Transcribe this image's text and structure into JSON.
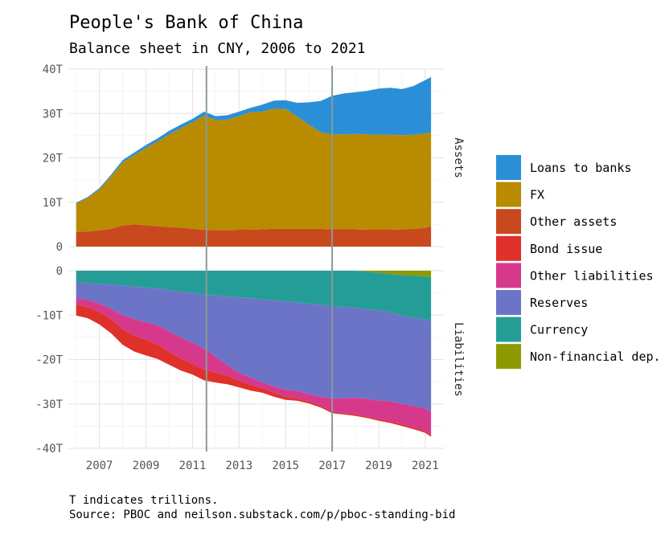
{
  "title": "People's Bank of China",
  "subtitle": "Balance sheet in CNY, 2006 to 2021",
  "caption_line1": "T indicates trillions.",
  "caption_line2": "Source: PBOC and neilson.substack.com/p/pboc-standing-bid",
  "chart_data": {
    "type": "area",
    "stacked": true,
    "units": "CNY trillions",
    "x_ticks": [
      "2007",
      "2009",
      "2011",
      "2013",
      "2015",
      "2017",
      "2019",
      "2021"
    ],
    "vertical_lines": [
      2011.6,
      2017
    ],
    "panels": [
      {
        "facet_label": "Assets",
        "ylim": [
          0,
          40
        ],
        "y_ticks": [
          {
            "value": 40,
            "label": "40T"
          },
          {
            "value": 30,
            "label": "30T"
          },
          {
            "value": 20,
            "label": "20T"
          },
          {
            "value": 10,
            "label": "10T"
          },
          {
            "value": 0,
            "label": "0"
          }
        ],
        "x": [
          2006.0,
          2006.5,
          2007.0,
          2007.5,
          2008.0,
          2008.5,
          2009.0,
          2009.5,
          2010.0,
          2010.5,
          2011.0,
          2011.5,
          2012.0,
          2012.5,
          2013.0,
          2013.5,
          2014.0,
          2014.5,
          2015.0,
          2015.5,
          2016.0,
          2016.5,
          2017.0,
          2017.5,
          2018.0,
          2018.5,
          2019.0,
          2019.5,
          2020.0,
          2020.5,
          2021.0,
          2021.25
        ],
        "series": [
          {
            "name": "Other assets",
            "color": "#c9491e",
            "values": [
              3.3,
              3.4,
              3.7,
              4.0,
              4.8,
              5.0,
              4.8,
              4.6,
              4.4,
              4.3,
              4.0,
              3.8,
              3.7,
              3.7,
              3.8,
              3.8,
              3.9,
              4.0,
              4.0,
              4.0,
              4.0,
              4.0,
              3.9,
              3.9,
              3.9,
              3.8,
              3.8,
              3.8,
              3.9,
              4.0,
              4.2,
              4.6
            ]
          },
          {
            "name": "FX",
            "color": "#b88b00",
            "values": [
              6.4,
              7.6,
              9.2,
              11.8,
              14.2,
              15.6,
              17.4,
              19.1,
              20.9,
              22.4,
              24.0,
              25.7,
              24.8,
              24.9,
              25.6,
              26.5,
              26.5,
              27.1,
              27.0,
              25.3,
              23.5,
              21.8,
              21.4,
              21.4,
              21.5,
              21.5,
              21.4,
              21.4,
              21.2,
              21.2,
              21.3,
              21.2
            ]
          },
          {
            "name": "Loans to banks",
            "color": "#2b8fd8",
            "values": [
              0.2,
              0.2,
              0.3,
              0.4,
              0.5,
              0.6,
              0.7,
              0.7,
              0.8,
              0.8,
              0.8,
              0.9,
              0.9,
              1.0,
              1.0,
              1.0,
              1.6,
              1.8,
              2.0,
              3.1,
              5.0,
              7.0,
              8.7,
              9.2,
              9.4,
              9.8,
              10.4,
              10.6,
              10.4,
              11.0,
              12.0,
              12.4
            ]
          }
        ]
      },
      {
        "facet_label": "Liabilities",
        "ylim": [
          -40,
          0
        ],
        "y_ticks": [
          {
            "value": 0,
            "label": "0"
          },
          {
            "value": -10,
            "label": "-10T"
          },
          {
            "value": -20,
            "label": "-20T"
          },
          {
            "value": -30,
            "label": "-30T"
          },
          {
            "value": -40,
            "label": "-40T"
          }
        ],
        "x": [
          2006.0,
          2006.5,
          2007.0,
          2007.5,
          2008.0,
          2008.5,
          2009.0,
          2009.5,
          2010.0,
          2010.5,
          2011.0,
          2011.5,
          2012.0,
          2012.5,
          2013.0,
          2013.5,
          2014.0,
          2014.5,
          2015.0,
          2015.5,
          2016.0,
          2016.5,
          2017.0,
          2017.5,
          2018.0,
          2018.5,
          2019.0,
          2019.5,
          2020.0,
          2020.5,
          2021.0,
          2021.25
        ],
        "series": [
          {
            "name": "Non-financial dep.",
            "color": "#8c9a00",
            "values": [
              0,
              0,
              0,
              0,
              0,
              0,
              0,
              0,
              0,
              0,
              0,
              0,
              0,
              0,
              0,
              0,
              0,
              0,
              0,
              0,
              0,
              0,
              0,
              0,
              0,
              -0.2,
              -0.5,
              -0.8,
              -1.0,
              -1.1,
              -1.3,
              -1.5
            ]
          },
          {
            "name": "Currency",
            "color": "#259d97",
            "values": [
              -2.6,
              -2.8,
              -3.0,
              -3.1,
              -3.4,
              -3.6,
              -3.8,
              -4.0,
              -4.4,
              -4.7,
              -5.0,
              -5.4,
              -5.6,
              -5.8,
              -6.0,
              -6.2,
              -6.5,
              -6.7,
              -6.9,
              -7.2,
              -7.4,
              -7.7,
              -8.0,
              -8.2,
              -8.4,
              -8.5,
              -8.4,
              -8.6,
              -9.2,
              -9.5,
              -9.7,
              -10.0
            ]
          },
          {
            "name": "Reserves",
            "color": "#6c74c8",
            "values": [
              -3.6,
              -3.8,
              -4.4,
              -5.5,
              -6.6,
              -7.3,
              -7.8,
              -8.3,
              -9.3,
              -10.4,
              -11.2,
              -12.2,
              -13.8,
              -15.5,
              -17.0,
              -17.9,
              -18.7,
              -19.4,
              -19.9,
              -19.9,
              -20.4,
              -20.7,
              -20.8,
              -20.6,
              -20.2,
              -20.2,
              -20.4,
              -20.0,
              -19.8,
              -19.9,
              -20.1,
              -20.3
            ]
          },
          {
            "name": "Other liabilities",
            "color": "#d6398c",
            "values": [
              -1.5,
              -1.6,
              -1.9,
              -2.3,
              -3.2,
              -3.7,
              -4.0,
              -4.3,
              -4.6,
              -4.7,
              -4.8,
              -4.7,
              -3.6,
              -2.4,
              -1.8,
              -1.6,
              -1.3,
              -1.4,
              -1.6,
              -1.7,
              -1.7,
              -2.0,
              -3.0,
              -3.3,
              -3.8,
              -4.0,
              -4.2,
              -4.5,
              -4.6,
              -4.8,
              -5.0,
              -5.2
            ]
          },
          {
            "name": "Bond issue",
            "color": "#e0302a",
            "values": [
              -2.4,
              -2.5,
              -2.8,
              -3.2,
              -3.5,
              -3.6,
              -3.5,
              -3.3,
              -2.9,
              -2.7,
              -2.4,
              -2.4,
              -2.2,
              -1.9,
              -1.5,
              -1.3,
              -1.0,
              -0.9,
              -0.7,
              -0.5,
              -0.4,
              -0.4,
              -0.3,
              -0.3,
              -0.3,
              -0.3,
              -0.3,
              -0.4,
              -0.4,
              -0.4,
              -0.4,
              -0.4
            ]
          }
        ]
      }
    ],
    "legend": {
      "placement": "right",
      "entries": [
        {
          "name": "Loans to banks",
          "color": "#2b8fd8"
        },
        {
          "name": "FX",
          "color": "#b88b00"
        },
        {
          "name": "Other assets",
          "color": "#c9491e"
        },
        {
          "name": "Bond issue",
          "color": "#e0302a"
        },
        {
          "name": "Other liabilities",
          "color": "#d6398c"
        },
        {
          "name": "Reserves",
          "color": "#6c74c8"
        },
        {
          "name": "Currency",
          "color": "#259d97"
        },
        {
          "name": "Non-financial dep.",
          "color": "#8c9a00"
        }
      ]
    },
    "grid": true
  }
}
